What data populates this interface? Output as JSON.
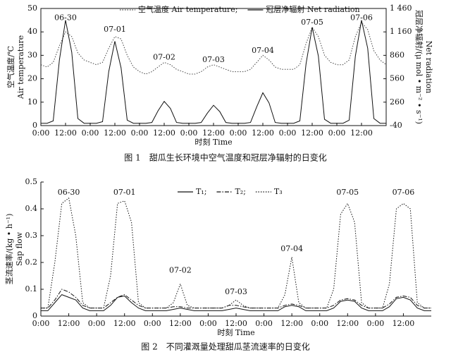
{
  "chart_data": [
    {
      "type": "line",
      "legend": "top",
      "xlabel": "时刻 Time",
      "ylabel": [
        "空气温度/℃",
        "Air temperature"
      ],
      "y2label": [
        "冠层净辐射/(μ mol • m⁻² • s⁻¹)",
        "Net radiation"
      ],
      "caption": "图 1　甜瓜生长环境中空气温度和冠层净辐射的日变化",
      "xlim": [
        0,
        168
      ],
      "xticks": [
        {
          "value": 0,
          "label": "0:00"
        },
        {
          "value": 12,
          "label": "12:00"
        },
        {
          "value": 24,
          "label": "0:00"
        },
        {
          "value": 36,
          "label": "12:00"
        },
        {
          "value": 48,
          "label": "0:00"
        },
        {
          "value": 60,
          "label": "12:00"
        },
        {
          "value": 72,
          "label": "0:00"
        },
        {
          "value": 84,
          "label": "12:00"
        },
        {
          "value": 96,
          "label": "0:00"
        },
        {
          "value": 108,
          "label": "12:00"
        },
        {
          "value": 120,
          "label": "0:00"
        },
        {
          "value": 132,
          "label": "12:00"
        },
        {
          "value": 144,
          "label": "0:00"
        },
        {
          "value": 156,
          "label": "12:00"
        }
      ],
      "ylim": [
        0,
        50
      ],
      "yticks": [
        0,
        10,
        20,
        30,
        40,
        50
      ],
      "y2lim": [
        -40,
        1460
      ],
      "y2ticks": [
        -40,
        260,
        560,
        860,
        {
          "value": 1160,
          "label": "1 160"
        },
        {
          "value": 1460,
          "label": "1 460"
        }
      ],
      "annotations": [
        {
          "text": "06-30",
          "x": 12,
          "y": 46
        },
        {
          "text": "07-01",
          "x": 36,
          "y": 41
        },
        {
          "text": "07-02",
          "x": 60,
          "y": 29
        },
        {
          "text": "07-03",
          "x": 84,
          "y": 28
        },
        {
          "text": "07-04",
          "x": 108,
          "y": 32
        },
        {
          "text": "07-05",
          "x": 132,
          "y": 44
        },
        {
          "text": "07-06",
          "x": 156,
          "y": 46
        }
      ],
      "x": [
        0,
        3,
        6,
        9,
        12,
        15,
        18,
        21,
        24,
        27,
        30,
        33,
        36,
        39,
        42,
        45,
        48,
        51,
        54,
        57,
        60,
        63,
        66,
        69,
        72,
        75,
        78,
        81,
        84,
        87,
        90,
        93,
        96,
        99,
        102,
        105,
        108,
        111,
        114,
        117,
        120,
        123,
        126,
        129,
        132,
        135,
        138,
        141,
        144,
        147,
        150,
        153,
        156,
        159,
        162,
        165,
        168
      ],
      "series": [
        {
          "name": "空气温度 Air temperature;",
          "style": "dotted",
          "color": "#444",
          "axis": "y",
          "values": [
            26,
            25,
            27,
            34,
            40,
            38,
            31,
            28,
            27,
            26,
            27,
            33,
            38,
            37,
            30,
            25,
            23,
            22,
            23,
            25,
            27,
            26,
            24,
            23,
            22,
            22,
            23,
            25,
            26,
            25,
            24,
            23,
            23,
            23,
            24,
            27,
            30,
            28,
            25,
            24,
            24,
            24,
            26,
            35,
            42,
            38,
            30,
            27,
            26,
            26,
            28,
            38,
            44,
            41,
            32,
            28,
            26
          ]
        },
        {
          "name": "冠层净辐射 Net radiation",
          "style": "solid",
          "color": "#111",
          "axis": "y2",
          "values": [
            -10,
            -10,
            20,
            800,
            1310,
            900,
            50,
            -10,
            -10,
            -10,
            10,
            650,
            1040,
            700,
            30,
            -10,
            -10,
            -10,
            0,
            150,
            270,
            180,
            0,
            -10,
            -10,
            -10,
            0,
            120,
            220,
            140,
            0,
            -10,
            -10,
            -10,
            0,
            200,
            380,
            250,
            0,
            -10,
            -10,
            -10,
            20,
            750,
            1220,
            850,
            40,
            -10,
            -10,
            -10,
            30,
            850,
            1310,
            950,
            50,
            -10,
            -10
          ]
        }
      ]
    },
    {
      "type": "line",
      "legend": "top",
      "xlabel": "时刻 Time",
      "ylabel": [
        "茎流速率/(kg • h⁻¹)",
        "Sap flow"
      ],
      "caption": "图 2　不同灌溉量处理甜瓜茎流速率的日变化",
      "xlim": [
        0,
        168
      ],
      "xticks": [
        {
          "value": 0,
          "label": "0:00"
        },
        {
          "value": 12,
          "label": "12:00"
        },
        {
          "value": 24,
          "label": "0:00"
        },
        {
          "value": 36,
          "label": "12:00"
        },
        {
          "value": 48,
          "label": "0:00"
        },
        {
          "value": 60,
          "label": "12:00"
        },
        {
          "value": 72,
          "label": "0:00"
        },
        {
          "value": 84,
          "label": "12:00"
        },
        {
          "value": 96,
          "label": "0:00"
        },
        {
          "value": 108,
          "label": "12:00"
        },
        {
          "value": 120,
          "label": "0:00"
        },
        {
          "value": 132,
          "label": "12:00"
        },
        {
          "value": 144,
          "label": "0:00"
        },
        {
          "value": 156,
          "label": "12:00"
        }
      ],
      "ylim": [
        0,
        0.5
      ],
      "yticks": [
        0,
        0.1,
        0.2,
        0.3,
        0.4,
        0.5
      ],
      "annotations": [
        {
          "text": "06-30",
          "x": 12,
          "y": 0.46
        },
        {
          "text": "07-01",
          "x": 36,
          "y": 0.46
        },
        {
          "text": "07-02",
          "x": 60,
          "y": 0.17
        },
        {
          "text": "07-03",
          "x": 84,
          "y": 0.09
        },
        {
          "text": "07-04",
          "x": 108,
          "y": 0.25
        },
        {
          "text": "07-05",
          "x": 132,
          "y": 0.46
        },
        {
          "text": "07-06",
          "x": 156,
          "y": 0.46
        }
      ],
      "x": [
        0,
        3,
        6,
        9,
        12,
        15,
        18,
        21,
        24,
        27,
        30,
        33,
        36,
        39,
        42,
        45,
        48,
        51,
        54,
        57,
        60,
        63,
        66,
        69,
        72,
        75,
        78,
        81,
        84,
        87,
        90,
        93,
        96,
        99,
        102,
        105,
        108,
        111,
        114,
        117,
        120,
        123,
        126,
        129,
        132,
        135,
        138,
        141,
        144,
        147,
        150,
        153,
        156,
        159,
        162,
        165,
        168
      ],
      "series": [
        {
          "name": "T₁;",
          "style": "solid",
          "color": "#111",
          "axis": "y",
          "values": [
            0.02,
            0.02,
            0.05,
            0.08,
            0.07,
            0.06,
            0.03,
            0.02,
            0.02,
            0.02,
            0.04,
            0.07,
            0.075,
            0.05,
            0.03,
            0.02,
            0.02,
            0.02,
            0.02,
            0.025,
            0.03,
            0.025,
            0.02,
            0.02,
            0.02,
            0.02,
            0.02,
            0.025,
            0.03,
            0.025,
            0.02,
            0.02,
            0.02,
            0.02,
            0.02,
            0.035,
            0.04,
            0.035,
            0.02,
            0.02,
            0.02,
            0.02,
            0.03,
            0.055,
            0.06,
            0.055,
            0.03,
            0.02,
            0.02,
            0.02,
            0.035,
            0.065,
            0.07,
            0.06,
            0.03,
            0.02,
            0.02
          ]
        },
        {
          "name": "T₂;",
          "style": "dashdot",
          "color": "#111",
          "axis": "y",
          "values": [
            0.03,
            0.03,
            0.06,
            0.1,
            0.09,
            0.07,
            0.04,
            0.03,
            0.03,
            0.03,
            0.05,
            0.07,
            0.08,
            0.06,
            0.04,
            0.03,
            0.03,
            0.03,
            0.03,
            0.035,
            0.035,
            0.03,
            0.03,
            0.03,
            0.03,
            0.03,
            0.03,
            0.04,
            0.04,
            0.035,
            0.03,
            0.03,
            0.03,
            0.03,
            0.03,
            0.04,
            0.045,
            0.04,
            0.03,
            0.03,
            0.03,
            0.03,
            0.04,
            0.06,
            0.065,
            0.06,
            0.04,
            0.03,
            0.03,
            0.03,
            0.045,
            0.07,
            0.075,
            0.07,
            0.04,
            0.03,
            0.03
          ]
        },
        {
          "name": "T₃",
          "style": "dotted",
          "color": "#111",
          "axis": "y",
          "values": [
            0.03,
            0.03,
            0.2,
            0.42,
            0.44,
            0.3,
            0.05,
            0.03,
            0.03,
            0.03,
            0.15,
            0.42,
            0.43,
            0.35,
            0.05,
            0.03,
            0.03,
            0.03,
            0.03,
            0.05,
            0.12,
            0.04,
            0.03,
            0.03,
            0.03,
            0.03,
            0.03,
            0.04,
            0.06,
            0.04,
            0.03,
            0.03,
            0.03,
            0.03,
            0.03,
            0.08,
            0.22,
            0.05,
            0.03,
            0.03,
            0.03,
            0.03,
            0.1,
            0.38,
            0.42,
            0.35,
            0.05,
            0.03,
            0.03,
            0.03,
            0.12,
            0.4,
            0.42,
            0.4,
            0.05,
            0.03,
            0.03
          ]
        }
      ]
    }
  ]
}
